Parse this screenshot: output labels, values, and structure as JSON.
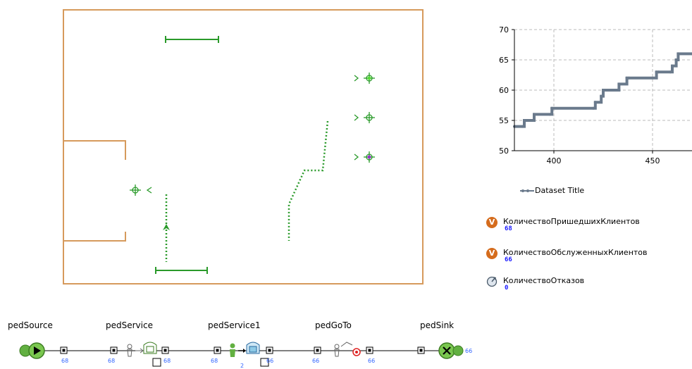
{
  "chart_data": {
    "type": "line",
    "series": [
      {
        "name": "Dataset Title",
        "x": [
          380,
          384,
          385,
          389,
          390,
          398,
          399,
          420,
          421,
          424,
          425,
          432,
          433,
          437,
          438,
          452,
          453,
          459,
          460,
          462,
          463,
          470
        ],
        "y": [
          54,
          54,
          55,
          55,
          56,
          56,
          57,
          57,
          58,
          59,
          60,
          60,
          61,
          62,
          62,
          63,
          63,
          63,
          64,
          65,
          66,
          66
        ]
      }
    ],
    "xlim": [
      380,
      470
    ],
    "ylim": [
      50,
      70
    ],
    "x_ticks": [
      "400",
      "450"
    ],
    "y_ticks": [
      "50",
      "55",
      "60",
      "65",
      "70"
    ],
    "grid": true,
    "legend_position": "bottom",
    "legend": [
      "Dataset Title"
    ]
  },
  "variables": [
    {
      "icon": "V",
      "name": "КоличествоПришедшихКлиентов",
      "value": "68"
    },
    {
      "icon": "V",
      "name": "КоличествоОбслуженныхКлиентов",
      "value": "66"
    },
    {
      "name": "КоличествоОтказов",
      "value": "0"
    }
  ],
  "flowchart": {
    "blocks": [
      {
        "label": "pedSource"
      },
      {
        "label": "pedService"
      },
      {
        "label": "pedService1"
      },
      {
        "label": "pedGoTo"
      },
      {
        "label": "pedSink"
      }
    ],
    "counts": [
      "68",
      "68",
      "68",
      "68",
      "2",
      "66",
      "66",
      "66",
      "66"
    ]
  },
  "colors": {
    "wall": "#d69a5c",
    "green": "#2a9a2a",
    "series": "#6a7a8c",
    "value_blue": "#1818ff",
    "var_icon": "#d56c1d"
  }
}
